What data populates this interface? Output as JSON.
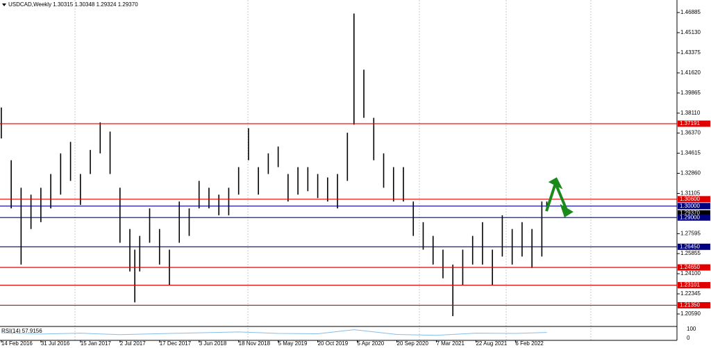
{
  "chart_data": {
    "type": "bars",
    "title": "USDCAD,Weekly  1.30315 1.30348 1.29324 1.29370",
    "color": "#000000",
    "x": [
      0,
      6,
      12,
      18,
      24,
      30,
      36,
      42,
      48,
      54,
      60,
      66,
      72,
      78,
      81,
      84,
      90,
      96,
      102,
      108,
      114,
      120,
      126,
      132,
      138,
      144,
      150,
      156,
      162,
      168,
      174,
      180,
      186,
      192,
      198,
      204,
      210,
      214,
      220,
      226,
      232,
      238,
      244,
      250,
      256,
      262,
      268,
      274,
      280,
      286,
      292,
      298,
      304,
      310,
      316,
      322,
      328,
      331
    ],
    "high": [
      1.386,
      1.34,
      1.316,
      1.31,
      1.316,
      1.328,
      1.346,
      1.356,
      1.328,
      1.349,
      1.373,
      1.365,
      1.316,
      1.28,
      1.262,
      1.274,
      1.298,
      1.28,
      1.262,
      1.304,
      1.298,
      1.322,
      1.316,
      1.31,
      1.316,
      1.334,
      1.368,
      1.334,
      1.346,
      1.352,
      1.328,
      1.334,
      1.334,
      1.328,
      1.325,
      1.328,
      1.364,
      1.468,
      1.419,
      1.377,
      1.346,
      1.334,
      1.334,
      1.304,
      1.286,
      1.274,
      1.262,
      1.249,
      1.262,
      1.274,
      1.286,
      1.262,
      1.292,
      1.28,
      1.286,
      1.28,
      1.304,
      1.304
    ],
    "low": [
      1.359,
      1.298,
      1.249,
      1.28,
      1.286,
      1.298,
      1.31,
      1.322,
      1.301,
      1.328,
      1.346,
      1.328,
      1.268,
      1.243,
      1.216,
      1.243,
      1.268,
      1.249,
      1.231,
      1.268,
      1.274,
      1.298,
      1.298,
      1.292,
      1.292,
      1.31,
      1.34,
      1.31,
      1.328,
      1.334,
      1.304,
      1.31,
      1.313,
      1.307,
      1.304,
      1.298,
      1.322,
      1.371,
      1.377,
      1.34,
      1.316,
      1.304,
      1.304,
      1.274,
      1.262,
      1.249,
      1.237,
      1.204,
      1.231,
      1.249,
      1.249,
      1.231,
      1.256,
      1.249,
      1.256,
      1.246,
      1.256,
      1.298
    ],
    "xlim": [
      -0.8,
      410
    ],
    "xticks": [
      {
        "value": 0,
        "label": "14 Feb 2016"
      },
      {
        "value": 24,
        "label": "31 Jul 2016"
      },
      {
        "value": 48,
        "label": "15 Jan 2017"
      },
      {
        "value": 72,
        "label": "2 Jul 2017"
      },
      {
        "value": 96,
        "label": "17 Dec 2017"
      },
      {
        "value": 120,
        "label": "3 Jun 2018"
      },
      {
        "value": 144,
        "label": "18 Nov 2018"
      },
      {
        "value": 168,
        "label": "5 May 2019"
      },
      {
        "value": 192,
        "label": "20 Oct 2019"
      },
      {
        "value": 216,
        "label": "5 Apr 2020"
      },
      {
        "value": 240,
        "label": "20 Sep 2020"
      },
      {
        "value": 264,
        "label": "7 Mar 2021"
      },
      {
        "value": 288,
        "label": "22 Aug 2021"
      },
      {
        "value": 312,
        "label": "6 Feb 2022"
      }
    ],
    "ylim": [
      1.1962,
      1.4798
    ],
    "yticks": [
      1.46885,
      {
        "value": 1.4513,
        "label": "1.45130"
      },
      1.43375,
      {
        "value": 1.4162,
        "label": "1.41620"
      },
      1.39865,
      {
        "value": 1.3811,
        "label": "1.38110"
      },
      {
        "value": 1.3637,
        "label": "1.36370"
      },
      1.34615,
      {
        "value": 1.3286,
        "label": "1.32860"
      },
      1.31105,
      1.27595,
      1.25855,
      {
        "value": 1.241,
        "label": "1.24100"
      },
      1.22345,
      {
        "value": 1.2059,
        "label": "1.20590"
      }
    ],
    "levels": [
      {
        "value": 1.37191,
        "color": "#e00000"
      },
      {
        "value": {
          "value": 1.306,
          "label": "1.30600"
        },
        "color": "#e00000"
      },
      {
        "value": {
          "value": 1.3,
          "label": "1.30000"
        },
        "color": "#000080"
      },
      {
        "value": {
          "value": 1.2937,
          "label": "1.29370"
        },
        "color": "#000000"
      },
      {
        "value": {
          "value": 1.29,
          "label": "1.29000"
        },
        "color": "#000080"
      },
      {
        "value": {
          "value": 1.2645,
          "label": "1.26450"
        },
        "color": "#000080"
      },
      {
        "value": {
          "value": 1.2465,
          "label": "1.24650"
        },
        "color": "#e00000"
      },
      {
        "value": 1.23101,
        "color": "#e00000"
      },
      {
        "value": {
          "value": 1.2135,
          "label": "1.21350"
        },
        "color": "#e00000"
      }
    ],
    "rsi": {
      "label": "RSI(14) 57.9156",
      "color": "#87bde8",
      "x": [
        0,
        24,
        48,
        72,
        96,
        120,
        144,
        168,
        192,
        214,
        240,
        264,
        288,
        312,
        331
      ],
      "values": [
        55,
        45,
        52,
        40,
        48,
        55,
        62,
        50,
        47,
        80,
        42,
        35,
        52,
        50,
        57.9156
      ],
      "ylim": [
        0,
        100
      ],
      "yticks": [
        100,
        0
      ]
    }
  }
}
